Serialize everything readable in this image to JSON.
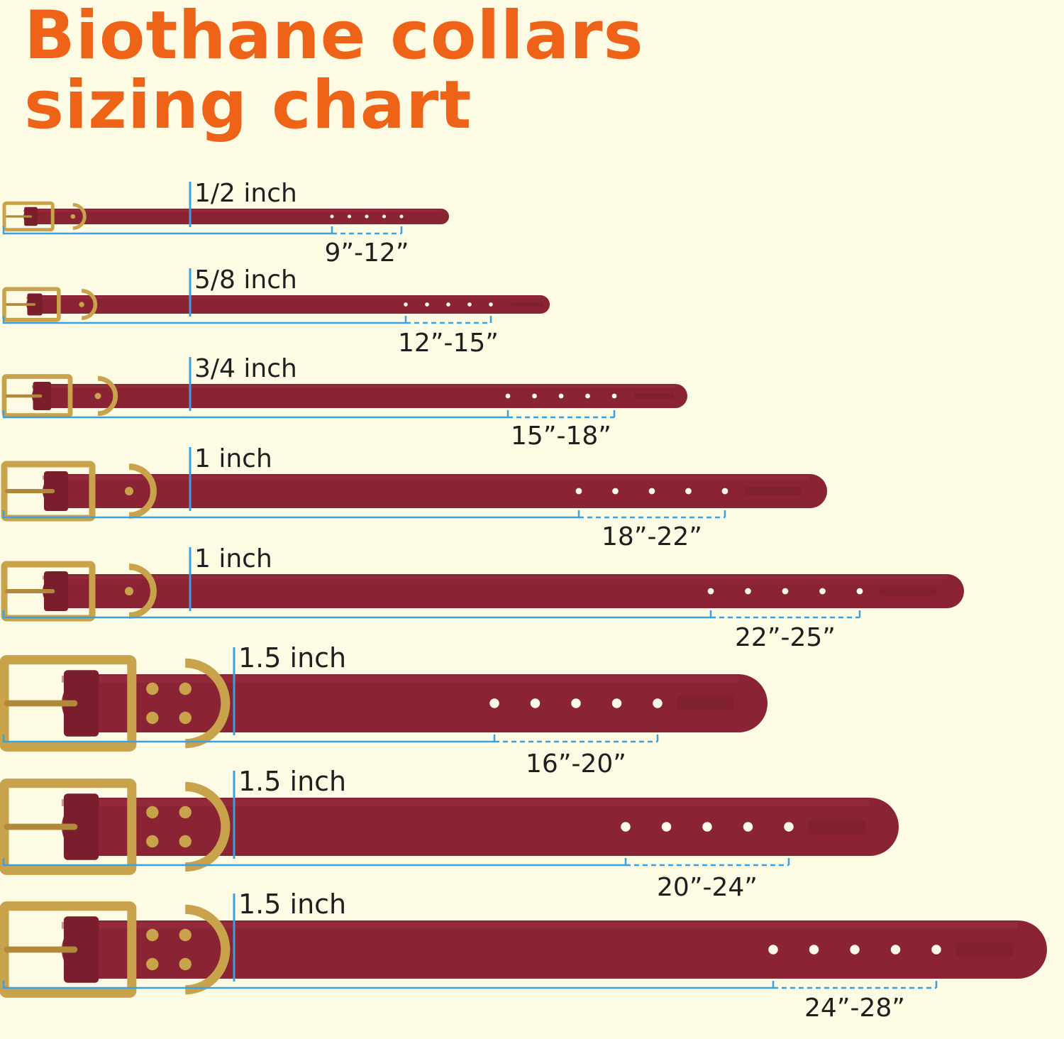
{
  "title": {
    "line1": "Biothane collars",
    "line2": "sizing chart"
  },
  "colors": {
    "background": "#fdfbe4",
    "title": "#ee6317",
    "strap": "#8a2333",
    "hardware": "#c9a24c",
    "measure_line": "#3aa0e0"
  },
  "collars": [
    {
      "width_label": "1/2 inch",
      "range_label": "9”-12”",
      "holes": 5,
      "brand_mark": false
    },
    {
      "width_label": "5/8 inch",
      "range_label": "12”-15”",
      "holes": 5,
      "brand_mark": true
    },
    {
      "width_label": "3/4 inch",
      "range_label": "15”-18”",
      "holes": 5,
      "brand_mark": true
    },
    {
      "width_label": "1 inch",
      "range_label": "18”-22”",
      "holes": 5,
      "brand_mark": true
    },
    {
      "width_label": "1 inch",
      "range_label": "22”-25”",
      "holes": 5,
      "brand_mark": true
    },
    {
      "width_label": "1.5 inch",
      "range_label": "16”-20”",
      "holes": 5,
      "brand_mark": true
    },
    {
      "width_label": "1.5 inch",
      "range_label": "20”-24”",
      "holes": 5,
      "brand_mark": true
    },
    {
      "width_label": "1.5 inch",
      "range_label": "24”-28”",
      "holes": 5,
      "brand_mark": true
    }
  ]
}
